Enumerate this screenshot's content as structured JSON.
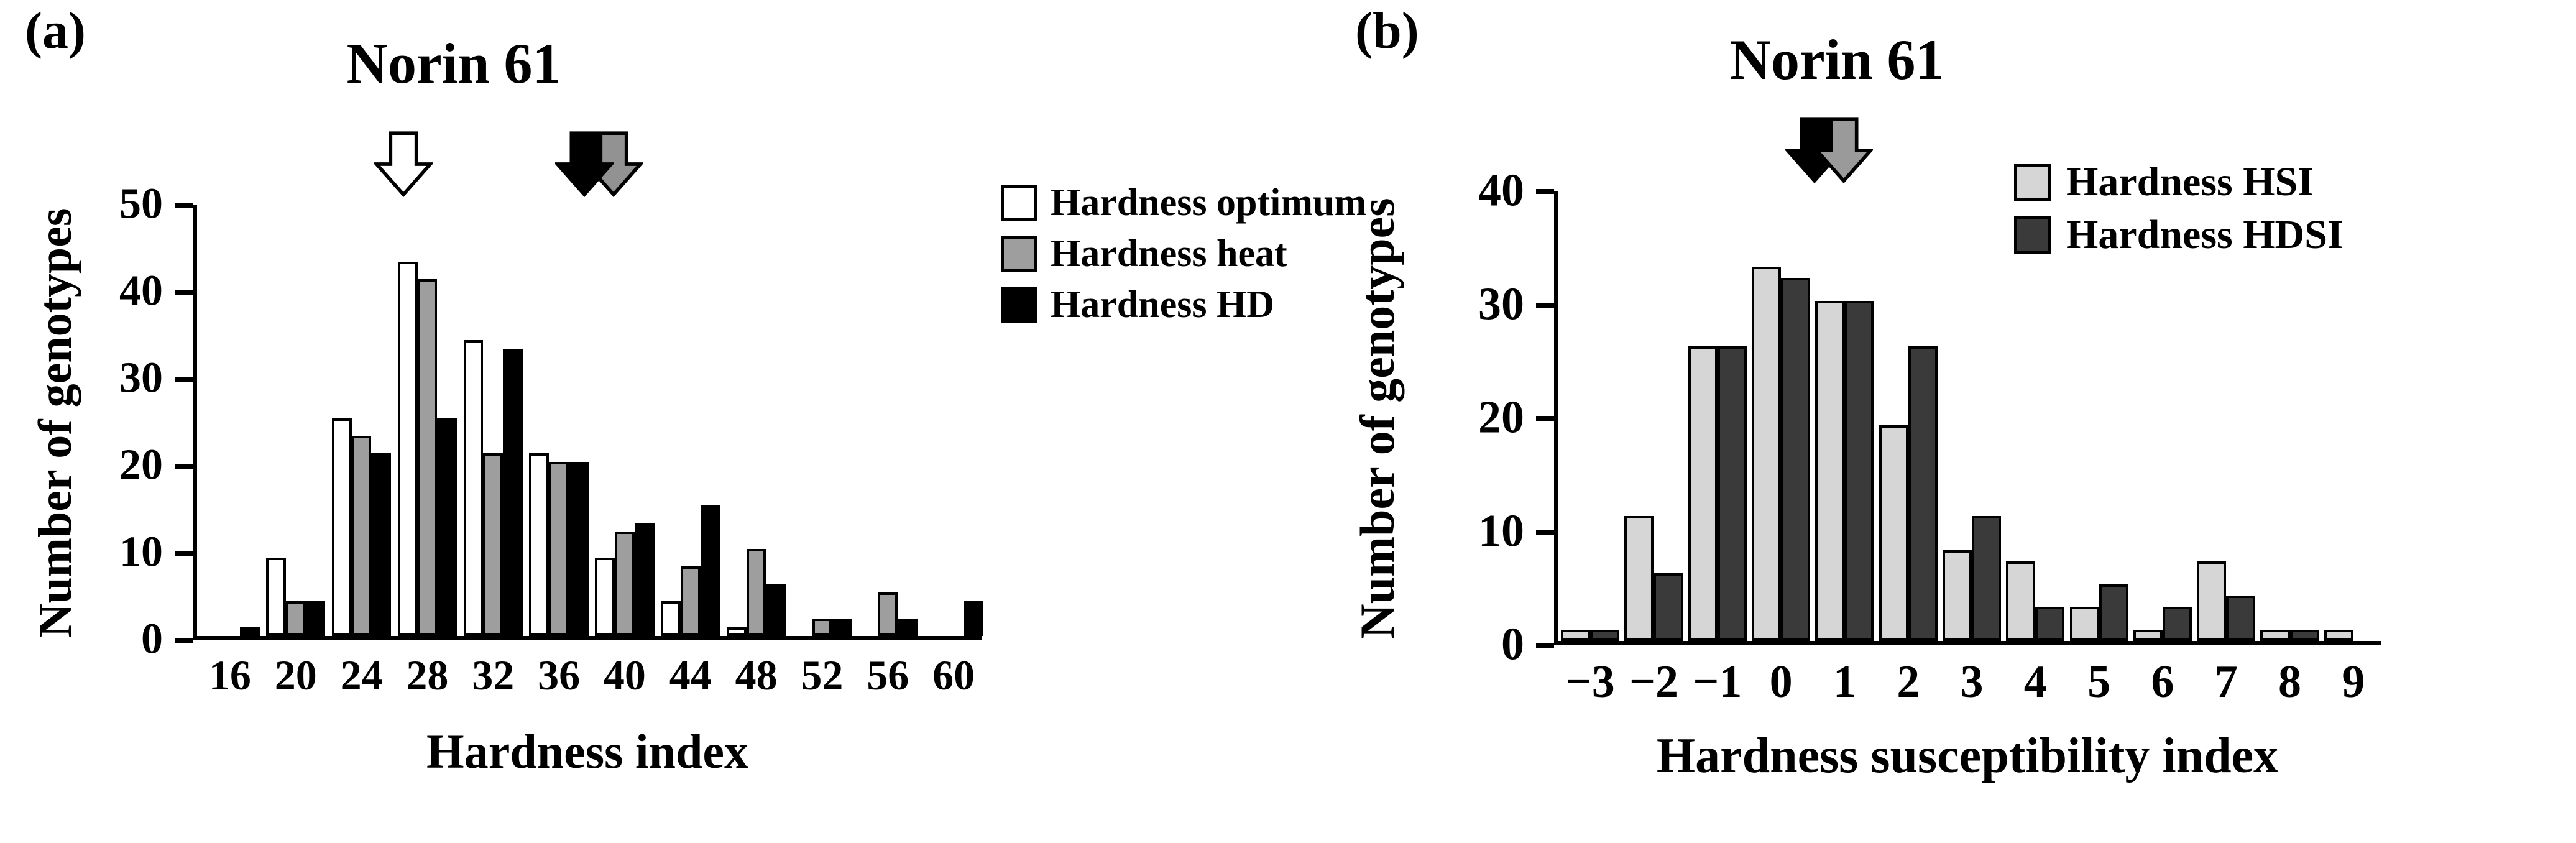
{
  "figure": {
    "background": "#ffffff"
  },
  "chart_data": [
    {
      "panel_label": "(a)",
      "type": "bar",
      "title": "Norin 61",
      "ylabel": "Number of genotypes",
      "xlabel": "Hardness index",
      "ylim": [
        0,
        50
      ],
      "yticks": [
        0,
        10,
        20,
        30,
        40,
        50
      ],
      "categories": [
        "16",
        "20",
        "24",
        "28",
        "32",
        "36",
        "40",
        "44",
        "48",
        "52",
        "56",
        "60"
      ],
      "series": [
        {
          "name": "Hardness optimum",
          "color": "#ffffff",
          "values": [
            0,
            9,
            25,
            43,
            34,
            21,
            9,
            4,
            1,
            0,
            0,
            0
          ]
        },
        {
          "name": "Hardness heat",
          "color": "#9e9e9e",
          "values": [
            0,
            4,
            23,
            41,
            21,
            20,
            12,
            8,
            10,
            2,
            5,
            0
          ]
        },
        {
          "name": "Hardness HD",
          "color": "#000000",
          "values": [
            1,
            4,
            21,
            25,
            33,
            20,
            13,
            15,
            6,
            2,
            2,
            4
          ]
        }
      ],
      "annotation": {
        "arrows": [
          {
            "name": "norin61-optimum-arrow",
            "fill": "#ffffff",
            "center_index": 2.7
          },
          {
            "name": "norin61-heat-arrow",
            "fill": "#929292",
            "center_index": 5.9
          },
          {
            "name": "norin61-hd-arrow",
            "fill": "#000000",
            "center_index": 5.45
          }
        ]
      },
      "legend_position": "right",
      "grid": false
    },
    {
      "panel_label": "(b)",
      "type": "bar",
      "title": "Norin 61",
      "ylabel": "Number of genotypes",
      "xlabel": "Hardness susceptibility index",
      "ylim": [
        0,
        40
      ],
      "yticks": [
        0,
        10,
        20,
        30,
        40
      ],
      "categories": [
        "−3",
        "−2",
        "−1",
        "0",
        "1",
        "2",
        "3",
        "4",
        "5",
        "6",
        "7",
        "8",
        "9"
      ],
      "series": [
        {
          "name": "Hardness HSI",
          "color": "#d6d6d6",
          "values": [
            1,
            11,
            26,
            33,
            30,
            19,
            8,
            7,
            3,
            1,
            7,
            1,
            1
          ]
        },
        {
          "name": "Hardness HDSI",
          "color": "#3a3a3a",
          "values": [
            1,
            6,
            26,
            32,
            30,
            26,
            11,
            3,
            5,
            3,
            4,
            1,
            0
          ]
        }
      ],
      "annotation": {
        "arrows": [
          {
            "name": "norin61-hdsi-arrow",
            "fill": "#000000",
            "center_index": 3.6
          },
          {
            "name": "norin61-hsi-arrow",
            "fill": "#9a9a9a",
            "center_index": 4.05
          }
        ]
      },
      "legend_position": "right",
      "grid": false
    }
  ]
}
